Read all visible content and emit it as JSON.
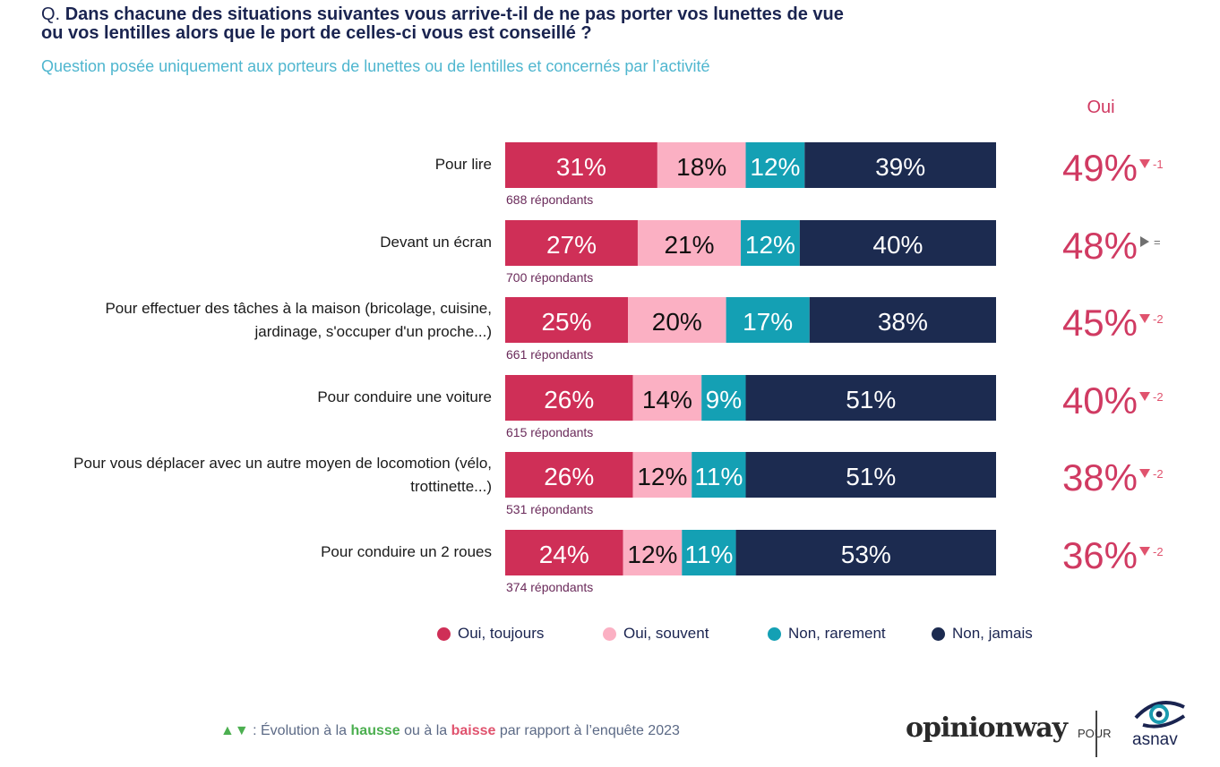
{
  "header": {
    "q_prefix": "Q.",
    "question_line1": "Dans chacune des situations suivantes vous arrive-t-il de ne pas porter vos lunettes de vue",
    "question_line2": "ou vos lentilles alors que le port de celles-ci vous est conseillé ?",
    "subtitle": "Question posée uniquement aux porteurs de lunettes ou de lentilles et concernés par l’activité"
  },
  "chart_data": {
    "type": "bar",
    "stacked": true,
    "orientation": "horizontal",
    "percent_suffix": "%",
    "oui_header": "Oui",
    "series": [
      {
        "name": "Oui, toujours",
        "color": "#cf2f57",
        "label_color": "#ffffff"
      },
      {
        "name": "Oui, souvent",
        "color": "#fbb0c3",
        "label_color": "#111111"
      },
      {
        "name": "Non, rarement",
        "color": "#14a0b4",
        "label_color": "#ffffff"
      },
      {
        "name": "Non, jamais",
        "color": "#1c2b50",
        "label_color": "#ffffff"
      }
    ],
    "categories": [
      {
        "label": [
          "Pour lire"
        ],
        "respondents": "688 répondants",
        "values": [
          31,
          18,
          12,
          39
        ],
        "oui": "49%",
        "trend": "down",
        "delta": "-1"
      },
      {
        "label": [
          "Devant un écran"
        ],
        "respondents": "700 répondants",
        "values": [
          27,
          21,
          12,
          40
        ],
        "oui": "48%",
        "trend": "equal",
        "delta": "="
      },
      {
        "label": [
          "Pour effectuer des tâches à la maison (bricolage, cuisine,",
          "jardinage, s'occuper d'un proche...)"
        ],
        "respondents": "661 répondants",
        "values": [
          25,
          20,
          17,
          38
        ],
        "oui": "45%",
        "trend": "down",
        "delta": "-2"
      },
      {
        "label": [
          "Pour conduire une voiture"
        ],
        "respondents": "615 répondants",
        "values": [
          26,
          14,
          9,
          51
        ],
        "oui": "40%",
        "trend": "down",
        "delta": "-2"
      },
      {
        "label": [
          "Pour vous déplacer avec un autre moyen de locomotion (vélo,",
          "trottinette...)"
        ],
        "respondents": "531 répondants",
        "values": [
          26,
          12,
          11,
          51
        ],
        "oui": "38%",
        "trend": "down",
        "delta": "-2"
      },
      {
        "label": [
          "Pour conduire un 2 roues"
        ],
        "respondents": "374 répondants",
        "values": [
          24,
          12,
          11,
          53
        ],
        "oui": "36%",
        "trend": "down",
        "delta": "-2"
      }
    ],
    "colors": {
      "oui_color": "#d03a62",
      "respondents_color": "#6a2a5a",
      "down_arrow": "#e0536e",
      "equal_arrow": "#707070",
      "delta_down": "#e0536e",
      "delta_equal": "#707070"
    }
  },
  "legend": [
    {
      "label": "Oui, toujours",
      "color": "#cf2f57"
    },
    {
      "label": "Oui, souvent",
      "color": "#fbb0c3"
    },
    {
      "label": "Non, rarement",
      "color": "#14a0b4"
    },
    {
      "label": "Non, jamais",
      "color": "#1c2b50"
    }
  ],
  "footer": {
    "arrows": "▲▼",
    "text_before": " : Évolution à la ",
    "hausse": "hausse",
    "text_middle": " ou à la ",
    "baisse": "baisse",
    "text_after": " par rapport à l’enquête 2023",
    "brand": "opinionway",
    "pour": "POUR",
    "partner": "asnav"
  }
}
